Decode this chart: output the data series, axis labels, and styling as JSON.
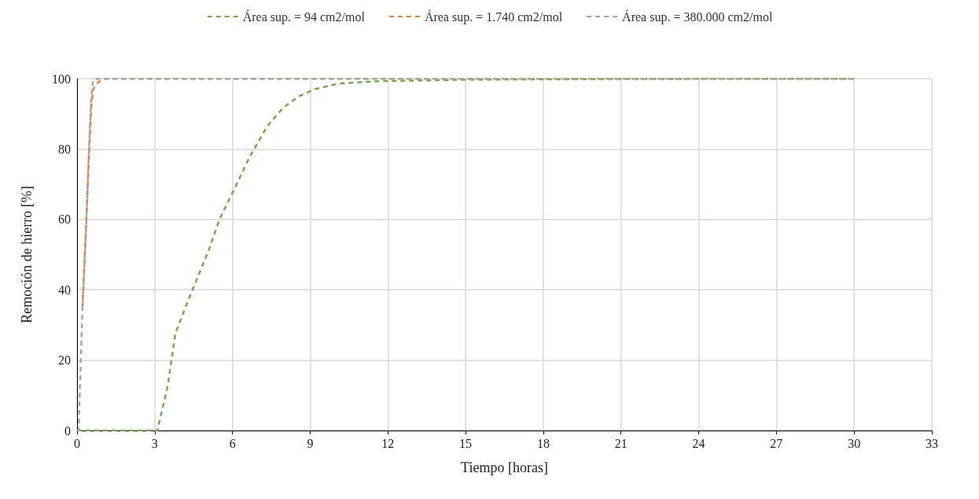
{
  "chart_data": {
    "type": "line",
    "xlabel": "Tiempo [horas]",
    "ylabel": "Remoción de hierro [%]",
    "xlim": [
      0,
      33
    ],
    "xticks": [
      0,
      3,
      6,
      9,
      12,
      15,
      18,
      21,
      24,
      27,
      30,
      33
    ],
    "ylim": [
      0,
      100
    ],
    "yticks": [
      0,
      20,
      40,
      60,
      80,
      100
    ],
    "grid": true,
    "legend": "top",
    "marker": "none",
    "line_style": "dashed",
    "series": [
      {
        "name": "Área sup. = 94 cm2/mol",
        "color": "#70ad47",
        "x": [
          0,
          1,
          2,
          3,
          3.1,
          3.5,
          3.8,
          4.4,
          5.07,
          5.5,
          6.03,
          6.65,
          7.35,
          7.95,
          8.56,
          9.17,
          10.08,
          11.6,
          15,
          20,
          25,
          30
        ],
        "values": [
          0,
          0,
          0,
          0,
          0,
          12.7,
          27.7,
          39,
          51,
          60,
          68,
          77.6,
          86.6,
          91.7,
          95,
          97,
          98.6,
          99.3,
          99.7,
          99.9,
          100,
          100
        ]
      },
      {
        "name": "Área sup. = 1.740 cm2/mol",
        "color": "#ed7d31",
        "x": [
          0.21,
          0.36,
          0.47,
          0.55,
          0.62,
          0.75,
          0.9,
          1.1,
          2,
          5,
          10,
          20,
          30
        ],
        "values": [
          35,
          60,
          80,
          92,
          97,
          98.5,
          99.5,
          100,
          100,
          100,
          100,
          100,
          100
        ]
      },
      {
        "name": "Área sup. = 380.000 cm2/mol",
        "color": "#a5a5a5",
        "x": [
          0,
          0.06,
          0.21,
          0.36,
          0.46,
          0.55,
          0.62,
          0.8,
          1,
          2,
          5,
          10,
          20,
          30
        ],
        "values": [
          0,
          0,
          35,
          60,
          80,
          95,
          99.5,
          100,
          100,
          100,
          100,
          100,
          100,
          100
        ]
      }
    ]
  }
}
